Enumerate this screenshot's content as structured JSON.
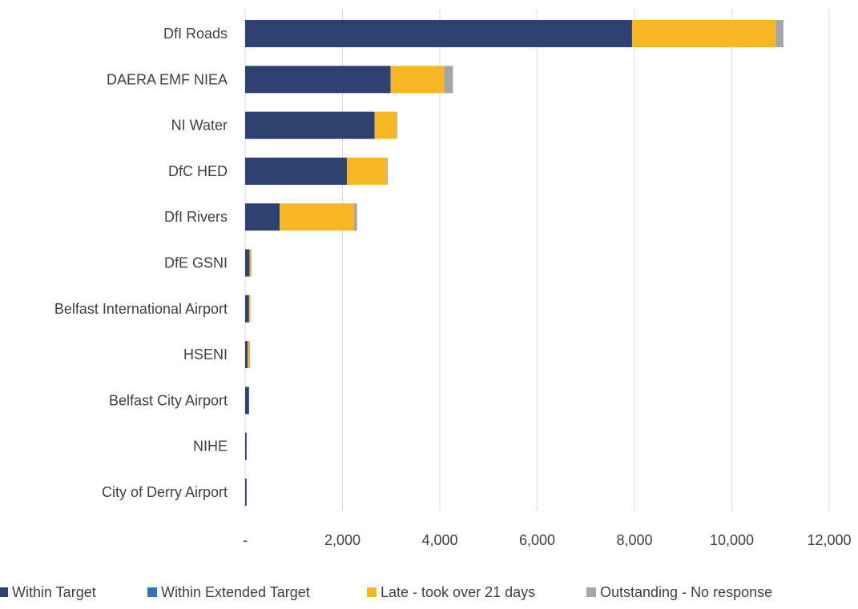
{
  "chart_data": {
    "type": "bar",
    "orientation": "horizontal",
    "stacked": true,
    "categories": [
      "DfI Roads",
      "DAERA EMF NIEA",
      "NI Water",
      "DfC HED",
      "DfI Rivers",
      "DfE GSNI",
      "Belfast International Airport",
      "HSENI",
      "Belfast City Airport",
      "NIHE",
      "City of Derry Airport"
    ],
    "series": [
      {
        "name": "Within Target",
        "color": "#2E4272",
        "values": [
          7950,
          2990,
          2660,
          2090,
          710,
          90,
          80,
          50,
          80,
          30,
          30
        ]
      },
      {
        "name": "Within Extended Target",
        "color": "#2E75B6",
        "values": [
          0,
          0,
          0,
          0,
          0,
          0,
          0,
          0,
          0,
          0,
          0
        ]
      },
      {
        "name": "Late - took over 21 days",
        "color": "#F6B625",
        "values": [
          2950,
          1100,
          450,
          820,
          1530,
          30,
          30,
          40,
          0,
          0,
          0
        ]
      },
      {
        "name": "Outstanding - No response",
        "color": "#A5A5A5",
        "values": [
          160,
          180,
          15,
          20,
          60,
          10,
          0,
          10,
          0,
          0,
          0
        ]
      }
    ],
    "xlim": [
      0,
      12000
    ],
    "xticks": [
      0,
      2000,
      4000,
      6000,
      8000,
      10000,
      12000
    ],
    "xtick_labels": [
      "-",
      "2,000",
      "4,000",
      "6,000",
      "8,000",
      "10,000",
      "12,000"
    ],
    "grid": "vertical",
    "legend": "bottom",
    "title": "",
    "xlabel": "",
    "ylabel": ""
  }
}
